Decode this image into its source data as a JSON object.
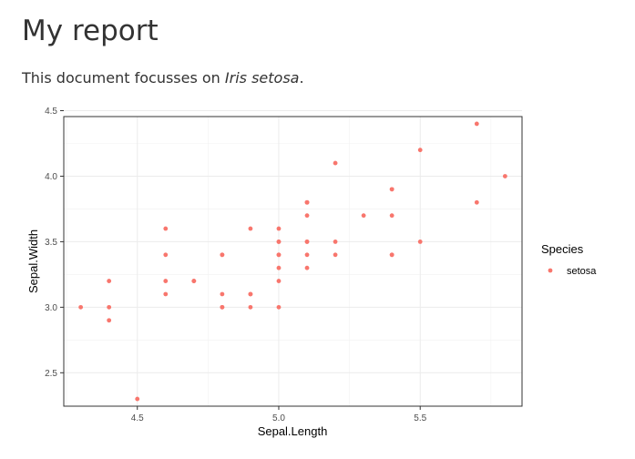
{
  "document": {
    "title": "My report",
    "intro_prefix": "This document focusses on ",
    "intro_species": "Iris setosa",
    "intro_suffix": "."
  },
  "chart_data": {
    "type": "scatter",
    "title": "",
    "xlabel": "Sepal.Length",
    "ylabel": "Sepal.Width",
    "xlim": [
      4.24,
      5.86
    ],
    "ylim": [
      2.245,
      4.455
    ],
    "x_ticks": [
      4.5,
      5.0,
      5.5
    ],
    "x_tick_labels": [
      "4.5",
      "5.0",
      "5.5"
    ],
    "y_ticks": [
      2.5,
      3.0,
      3.5,
      4.0,
      4.5
    ],
    "y_tick_labels": [
      "2.5",
      "3.0",
      "3.5",
      "4.0",
      "4.5"
    ],
    "grid": true,
    "legend": {
      "title": "Species",
      "placement": "right"
    },
    "point_color": "#f8766d",
    "series": [
      {
        "name": "setosa",
        "points": [
          [
            5.1,
            3.5
          ],
          [
            4.9,
            3.0
          ],
          [
            4.7,
            3.2
          ],
          [
            4.6,
            3.1
          ],
          [
            5.0,
            3.6
          ],
          [
            5.4,
            3.9
          ],
          [
            4.6,
            3.4
          ],
          [
            5.0,
            3.4
          ],
          [
            4.4,
            2.9
          ],
          [
            4.9,
            3.1
          ],
          [
            5.4,
            3.7
          ],
          [
            4.8,
            3.4
          ],
          [
            4.8,
            3.0
          ],
          [
            4.3,
            3.0
          ],
          [
            5.8,
            4.0
          ],
          [
            5.7,
            4.4
          ],
          [
            5.4,
            3.9
          ],
          [
            5.1,
            3.5
          ],
          [
            5.7,
            3.8
          ],
          [
            5.1,
            3.8
          ],
          [
            5.4,
            3.4
          ],
          [
            5.1,
            3.7
          ],
          [
            4.6,
            3.6
          ],
          [
            5.1,
            3.3
          ],
          [
            4.8,
            3.4
          ],
          [
            5.0,
            3.0
          ],
          [
            5.0,
            3.4
          ],
          [
            5.2,
            3.5
          ],
          [
            5.2,
            3.4
          ],
          [
            4.7,
            3.2
          ],
          [
            4.8,
            3.1
          ],
          [
            5.4,
            3.4
          ],
          [
            5.2,
            4.1
          ],
          [
            5.5,
            4.2
          ],
          [
            4.9,
            3.1
          ],
          [
            5.0,
            3.2
          ],
          [
            5.5,
            3.5
          ],
          [
            4.9,
            3.6
          ],
          [
            4.4,
            3.0
          ],
          [
            5.1,
            3.4
          ],
          [
            5.0,
            3.5
          ],
          [
            4.5,
            2.3
          ],
          [
            4.4,
            3.2
          ],
          [
            5.0,
            3.5
          ],
          [
            5.1,
            3.8
          ],
          [
            4.8,
            3.0
          ],
          [
            5.1,
            3.8
          ],
          [
            4.6,
            3.2
          ],
          [
            5.3,
            3.7
          ],
          [
            5.0,
            3.3
          ]
        ]
      }
    ]
  }
}
